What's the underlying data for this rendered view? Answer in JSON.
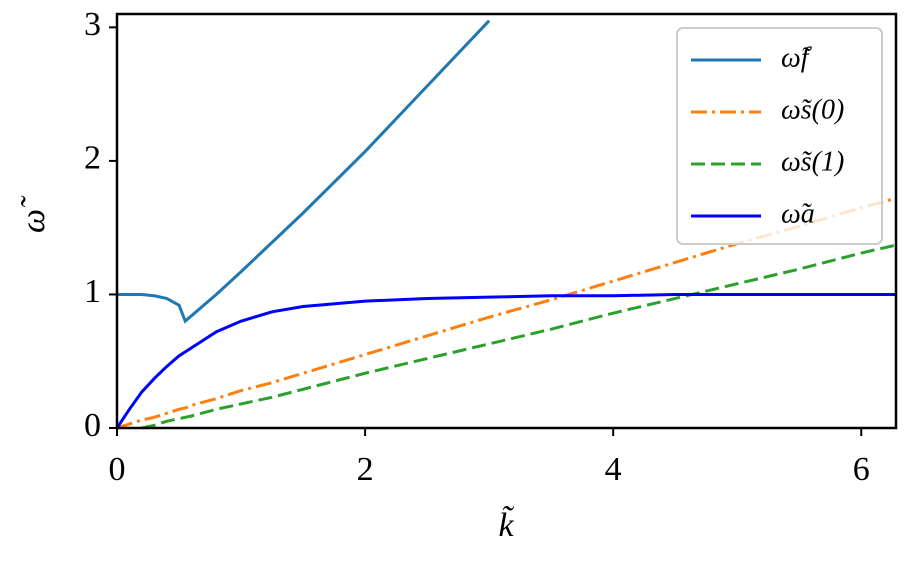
{
  "chart_data": {
    "type": "line",
    "xlabel": "k̃",
    "ylabel": "ω̃",
    "x": [
      0,
      0.1,
      0.2,
      0.3,
      0.4,
      0.5,
      0.55,
      0.6,
      0.8,
      1,
      1.25,
      1.5,
      2,
      2.5,
      3,
      3.5,
      4,
      4.5,
      5,
      5.5,
      6,
      6.28
    ],
    "series": [
      {
        "name": "ω̃f",
        "color": "#1f77b4",
        "linestyle": "-",
        "values": [
          1,
          1,
          1,
          0.99,
          0.97,
          0.92,
          0.8,
          0.84,
          1.0,
          1.17,
          1.39,
          1.61,
          2.07,
          2.56,
          3.05,
          null,
          null,
          null,
          null,
          null,
          null,
          null
        ]
      },
      {
        "name": "ω̃s(0)",
        "color": "#ff7f0e",
        "linestyle": "-.",
        "values": [
          0,
          0.03,
          0.06,
          0.08,
          0.11,
          0.14,
          0.15,
          0.17,
          0.22,
          0.28,
          0.34,
          0.41,
          0.55,
          0.69,
          0.83,
          0.96,
          1.1,
          1.24,
          1.38,
          1.51,
          1.65,
          1.72
        ]
      },
      {
        "name": "ω̃s(1)",
        "color": "#2ca02c",
        "linestyle": "--",
        "values": [
          null,
          null,
          0,
          0.02,
          0.05,
          0.07,
          0.08,
          0.09,
          0.14,
          0.18,
          0.23,
          0.29,
          0.41,
          0.52,
          0.63,
          0.74,
          0.86,
          0.97,
          1.08,
          1.19,
          1.31,
          1.37
        ]
      },
      {
        "name": "ω̃a",
        "color": "#0000ff",
        "linestyle": "-",
        "values": [
          0,
          0.14,
          0.27,
          0.37,
          0.46,
          0.54,
          0.57,
          0.6,
          0.72,
          0.8,
          0.87,
          0.91,
          0.95,
          0.97,
          0.98,
          0.99,
          0.99,
          1.0,
          1.0,
          1.0,
          1.0,
          1.0
        ]
      }
    ],
    "xlim": [
      0,
      6.28
    ],
    "ylim": [
      0,
      3.1
    ],
    "xticks": [
      0,
      2,
      4,
      6
    ],
    "yticks": [
      0,
      1,
      2,
      3
    ],
    "legend": "upper right"
  }
}
